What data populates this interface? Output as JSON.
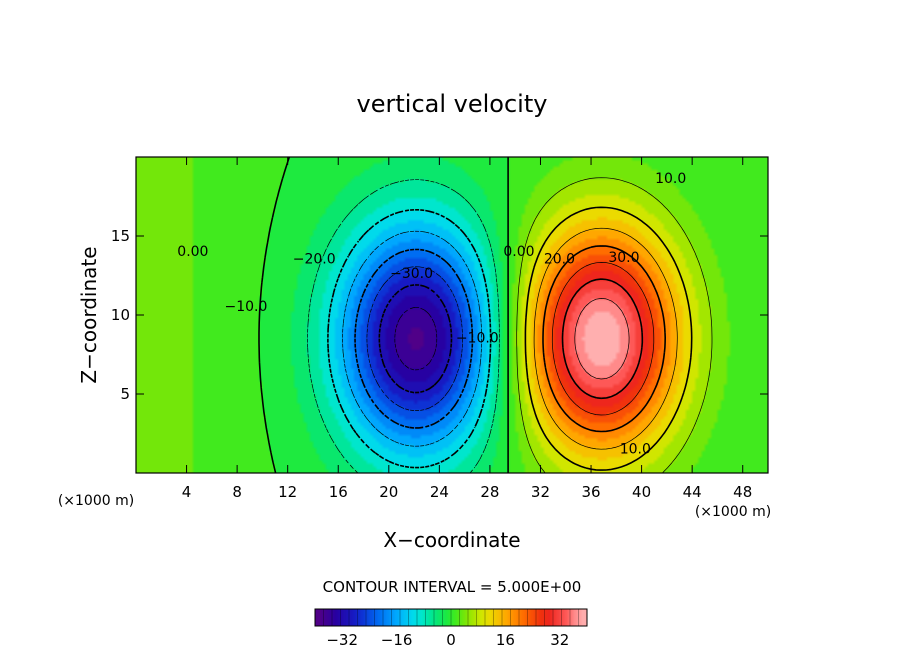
{
  "chart_data": {
    "type": "heatmap",
    "title": "vertical velocity",
    "xlabel": "X−coordinate",
    "ylabel": "Z−coordinate",
    "x_unit_label": "(×1000 m)",
    "y_unit_label": "(×1000 m)",
    "xlim": [
      0,
      50
    ],
    "ylim": [
      0,
      20
    ],
    "x_ticks": [
      4,
      8,
      12,
      16,
      20,
      24,
      28,
      32,
      36,
      40,
      44,
      48
    ],
    "y_ticks": [
      5,
      10,
      15
    ],
    "contour_interval_label": "CONTOUR INTERVAL = 5.000E+00",
    "colorbar": {
      "range": [
        -40,
        40
      ],
      "ticks": [
        -32,
        -16,
        0,
        16,
        32
      ],
      "tick_labels": [
        "−32",
        "−16",
        "0",
        "16",
        "32"
      ]
    },
    "field": {
      "updraft": {
        "center": [
          36.8,
          8.5
        ],
        "peak": 40,
        "sigma_x": 4.3,
        "sigma_z": 5.0
      },
      "downdraft": {
        "center": [
          22.2,
          8.5
        ],
        "peak": -38,
        "sigma_x": 4.3,
        "sigma_z": 5.0
      },
      "background": 3
    },
    "contour_labels": [
      {
        "text": "0.00",
        "x": 4.5,
        "z": 14.0
      },
      {
        "text": "−10.0",
        "x": 8.7,
        "z": 10.5
      },
      {
        "text": "−20.0",
        "x": 14.1,
        "z": 13.5
      },
      {
        "text": "−30.0",
        "x": 21.8,
        "z": 12.6
      },
      {
        "text": "−10.0",
        "x": 27.0,
        "z": 8.5
      },
      {
        "text": "0.00",
        "x": 30.3,
        "z": 14.0
      },
      {
        "text": "20.0",
        "x": 33.5,
        "z": 13.5
      },
      {
        "text": "30.0",
        "x": 38.6,
        "z": 13.6
      },
      {
        "text": "10.0",
        "x": 42.3,
        "z": 18.6
      },
      {
        "text": "10.0",
        "x": 39.5,
        "z": 1.5
      }
    ]
  }
}
